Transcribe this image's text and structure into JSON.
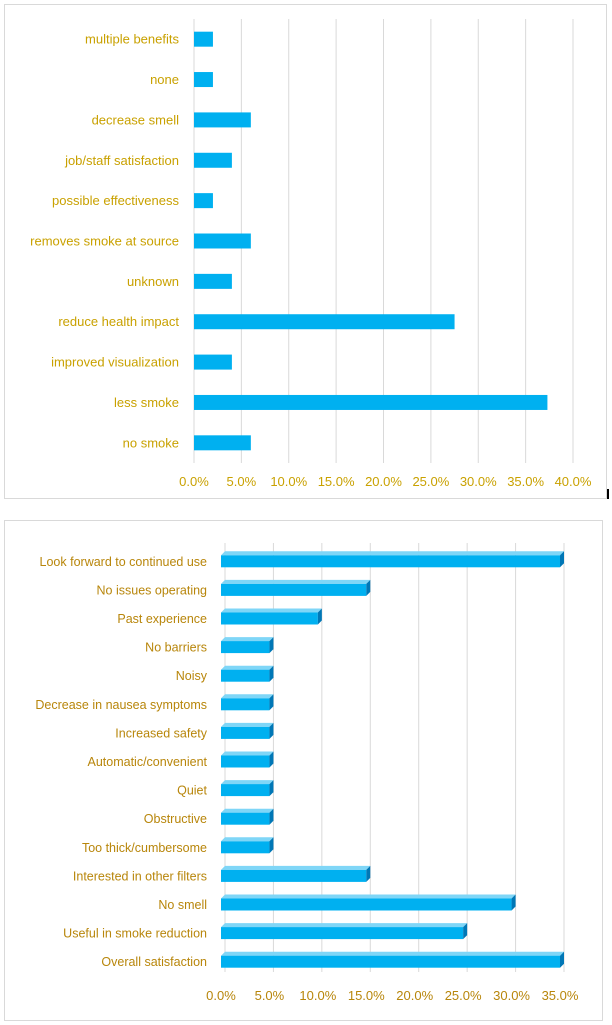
{
  "chart_data": [
    {
      "type": "bar",
      "orientation": "horizontal",
      "categories": [
        "multiple benefits",
        "none",
        "decrease smell",
        "job/staff satisfaction",
        "possible effectiveness",
        "removes smoke at source",
        "unknown",
        "reduce health impact",
        "improved visualization",
        "less smoke",
        "no smoke"
      ],
      "values": [
        2.0,
        2.0,
        6.0,
        4.0,
        2.0,
        6.0,
        4.0,
        27.5,
        4.0,
        37.3,
        6.0
      ],
      "xlim": [
        0,
        40
      ],
      "x_ticks": [
        "0.0%",
        "5.0%",
        "10.0%",
        "15.0%",
        "20.0%",
        "25.0%",
        "30.0%",
        "35.0%",
        "40.0%"
      ],
      "grid": true,
      "title": "",
      "xlabel": "",
      "ylabel": "",
      "bar_color": "#00b0f0",
      "label_color": "#c9a100"
    },
    {
      "type": "bar",
      "orientation": "horizontal",
      "style": "3d",
      "categories": [
        "Look forward to continued use",
        "No issues operating",
        "Past experience",
        "No barriers",
        "Noisy",
        "Decrease in nausea symptoms",
        "Increased safety",
        "Automatic/convenient",
        "Quiet",
        "Obstructive",
        "Too thick/cumbersome",
        "Interested in other filters",
        "No smell",
        "Useful in smoke reduction",
        "Overall satisfaction"
      ],
      "values": [
        35,
        15,
        10,
        5,
        5,
        5,
        5,
        5,
        5,
        5,
        5,
        15,
        30,
        25,
        35
      ],
      "xlim": [
        0,
        35
      ],
      "x_ticks": [
        "0.0%",
        "5.0%",
        "10.0%",
        "15.0%",
        "20.0%",
        "25.0%",
        "30.0%",
        "35.0%"
      ],
      "grid": true,
      "title": "",
      "xlabel": "",
      "ylabel": "",
      "bar_color": "#00b0f0",
      "bar_dark_color": "#0077b6",
      "label_color": "#b8860b"
    }
  ]
}
